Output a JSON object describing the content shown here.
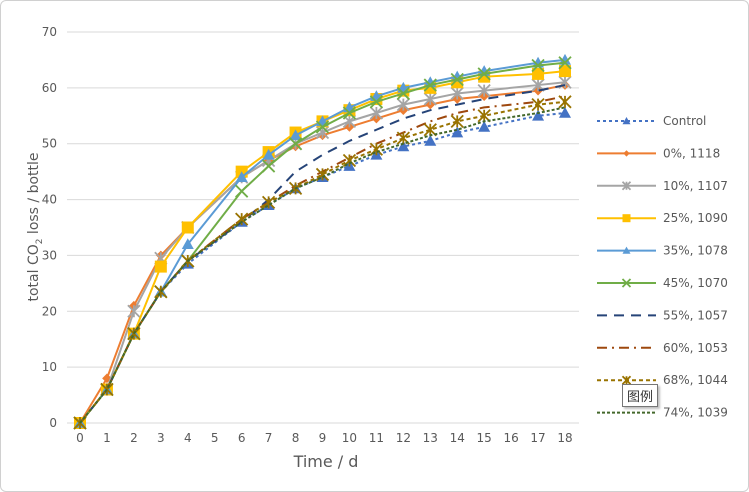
{
  "chart_data": {
    "type": "line",
    "xlabel": "Time / d",
    "ylabel_parts": [
      "total CO",
      "2",
      " loss / bottle"
    ],
    "ylim": [
      0,
      70
    ],
    "yticks": [
      0,
      10,
      20,
      30,
      40,
      50,
      60,
      70
    ],
    "categories": [
      "0",
      "1",
      "2",
      "3",
      "4",
      "5",
      "6",
      "7",
      "8",
      "9",
      "10",
      "11",
      "12",
      "13",
      "14",
      "15",
      "16",
      "17",
      "18"
    ],
    "x": [
      0,
      1,
      2,
      3,
      4,
      6,
      7,
      8,
      9,
      10,
      11,
      12,
      13,
      14,
      15,
      17,
      18
    ],
    "grid": true,
    "legend_position": "right",
    "series": [
      {
        "name": "Control",
        "color": "#4472C4",
        "dash": "3,3",
        "marker": "triangle",
        "values": [
          0,
          6,
          16,
          23.5,
          28.5,
          36,
          39,
          42,
          44,
          46,
          48,
          49.5,
          50.5,
          52,
          53,
          55,
          55.5
        ]
      },
      {
        "name": "0%,  1118",
        "color": "#ED7D31",
        "dash": "",
        "marker": "diamond",
        "values": [
          0,
          8,
          21,
          30,
          35,
          44,
          47,
          49.5,
          51.5,
          53,
          54.5,
          56,
          57,
          58,
          58.5,
          59.5,
          60.5
        ]
      },
      {
        "name": "10%,  1107",
        "color": "#A5A5A5",
        "dash": "",
        "marker": "star",
        "values": [
          0,
          6,
          20,
          29.5,
          35,
          44,
          47,
          50,
          52,
          54,
          55.5,
          57,
          58,
          59,
          59.5,
          60.5,
          61
        ]
      },
      {
        "name": "25%,  1090",
        "color": "#FFC000",
        "dash": "",
        "marker": "square",
        "values": [
          0,
          6,
          16,
          28,
          35,
          45,
          48.5,
          52,
          54,
          56,
          58,
          59.5,
          60,
          61,
          62,
          62.5,
          63
        ]
      },
      {
        "name": "35%,  1078",
        "color": "#5B9BD5",
        "dash": "",
        "marker": "triangle",
        "values": [
          0,
          6,
          16,
          23.5,
          32,
          44,
          48,
          51.5,
          54,
          56.5,
          58.5,
          60,
          61,
          62,
          63,
          64.5,
          65
        ]
      },
      {
        "name": "45%,  1070",
        "color": "#70AD47",
        "dash": "",
        "marker": "x",
        "values": [
          0,
          6,
          16,
          23.5,
          29,
          41.5,
          46,
          50,
          53,
          55.5,
          57.5,
          59,
          60.5,
          61.5,
          62.5,
          64,
          64.5
        ]
      },
      {
        "name": "55%,  1057",
        "color": "#264478",
        "dash": "10,7",
        "marker": "none",
        "values": [
          0,
          6,
          16,
          23.5,
          29,
          36,
          40,
          45,
          48,
          50.5,
          52.5,
          54.5,
          56,
          57,
          58,
          59.5,
          60.5
        ]
      },
      {
        "name": "60%,  1053",
        "color": "#9E480E",
        "dash": "10,5,2,5",
        "marker": "none",
        "values": [
          0,
          6,
          16,
          23.5,
          29,
          36.5,
          39.5,
          42.5,
          45,
          47.5,
          50,
          52,
          54,
          55.5,
          56.5,
          57.5,
          58.5
        ]
      },
      {
        "name": "68%,  1044",
        "color": "#997300",
        "dash": "4,3",
        "marker": "star",
        "values": [
          0,
          6,
          16,
          23.5,
          29,
          36.5,
          39.5,
          42,
          44.5,
          47,
          49,
          51,
          52.5,
          54,
          55,
          57,
          57.5
        ]
      },
      {
        "name": "74%,  1039",
        "color": "#43682B",
        "dash": "3,2",
        "marker": "none",
        "values": [
          0,
          6,
          16,
          23.5,
          29,
          36,
          39,
          42,
          44,
          46.5,
          48.5,
          50,
          51.5,
          52.5,
          54,
          55.5,
          56.5
        ]
      }
    ]
  },
  "tooltip": "图例"
}
